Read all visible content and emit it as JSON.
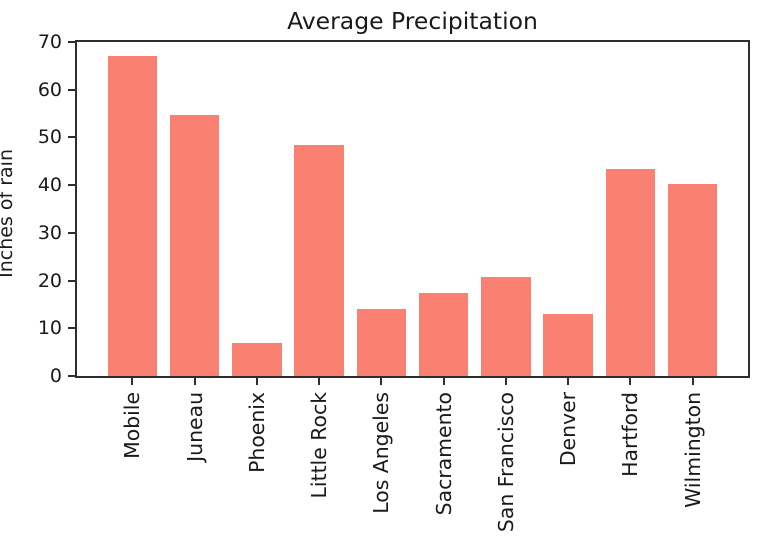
{
  "chart_data": {
    "type": "bar",
    "title": "Average Precipitation",
    "ylabel": "Inches of rain",
    "categories": [
      "Mobile",
      "Juneau",
      "Phoenix",
      "Little Rock",
      "Los Angeles",
      "Sacramento",
      "San Francisco",
      "Denver",
      "Hartford",
      "Wilmington"
    ],
    "values": [
      67.0,
      54.7,
      7.0,
      48.5,
      14.0,
      17.4,
      20.7,
      13.0,
      43.4,
      40.2
    ],
    "ylim": [
      0,
      70
    ],
    "yticks": [
      0,
      10,
      20,
      30,
      40,
      50,
      60,
      70
    ],
    "x_tick_rotation": 90,
    "grid": false,
    "legend": null,
    "bar_color": "#FA8072",
    "axis_color": "#2e2e2e",
    "text_color": "#1a1a1a",
    "background": "#ffffff"
  }
}
